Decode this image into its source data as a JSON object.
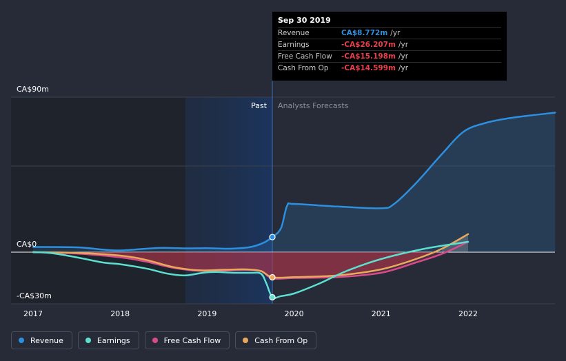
{
  "chart_data": {
    "type": "line",
    "x_unit": "year",
    "xlim": [
      2017,
      2023.0
    ],
    "ylim": [
      -30,
      90
    ],
    "y_tick_labels": [
      {
        "value": 90,
        "label": "CA$90m"
      },
      {
        "value": 0,
        "label": "CA$0"
      },
      {
        "value": -30,
        "label": "-CA$30m"
      }
    ],
    "x_ticks": [
      2017,
      2018,
      2019,
      2020,
      2021,
      2022
    ],
    "x_tick_labels": [
      "2017",
      "2018",
      "2019",
      "2020",
      "2021",
      "2022"
    ],
    "divider_x": 2019.75,
    "highlight_start_x": 2018.75,
    "past_label": "Past",
    "forecast_label": "Analysts Forecasts",
    "series": [
      {
        "name": "Revenue",
        "key": "revenue",
        "color": "#2d8fe0",
        "fill": true,
        "points": [
          [
            2017,
            3.0
          ],
          [
            2017.5,
            2.8
          ],
          [
            2017.8,
            1.5
          ],
          [
            2018.0,
            1.0
          ],
          [
            2018.3,
            2.0
          ],
          [
            2018.5,
            2.5
          ],
          [
            2018.75,
            2.2
          ],
          [
            2019.0,
            2.3
          ],
          [
            2019.25,
            2.0
          ],
          [
            2019.5,
            3.0
          ],
          [
            2019.65,
            5.5
          ],
          [
            2019.75,
            8.772
          ],
          [
            2019.85,
            14.0
          ],
          [
            2019.92,
            27.0
          ],
          [
            2020.0,
            28.0
          ],
          [
            2020.5,
            26.5
          ],
          [
            2021.0,
            25.5
          ],
          [
            2021.15,
            28.0
          ],
          [
            2021.4,
            40.0
          ],
          [
            2021.7,
            57.0
          ],
          [
            2021.95,
            70.0
          ],
          [
            2022.2,
            75.0
          ],
          [
            2022.5,
            78.0
          ],
          [
            2023.0,
            81.0
          ]
        ]
      },
      {
        "name": "Earnings",
        "key": "earnings",
        "color": "#5de0d0",
        "points": [
          [
            2017,
            0
          ],
          [
            2017.2,
            -0.5
          ],
          [
            2017.5,
            -3.0
          ],
          [
            2017.8,
            -6.0
          ],
          [
            2018.0,
            -7.0
          ],
          [
            2018.3,
            -9.5
          ],
          [
            2018.55,
            -12.5
          ],
          [
            2018.75,
            -13.5
          ],
          [
            2018.95,
            -12.0
          ],
          [
            2019.1,
            -11.5
          ],
          [
            2019.3,
            -12.0
          ],
          [
            2019.5,
            -12.0
          ],
          [
            2019.62,
            -12.5
          ],
          [
            2019.68,
            -18.0
          ],
          [
            2019.75,
            -26.207
          ],
          [
            2019.85,
            -25.5
          ],
          [
            2020.0,
            -24.0
          ],
          [
            2020.3,
            -18.0
          ],
          [
            2020.6,
            -11.0
          ],
          [
            2021.0,
            -4.0
          ],
          [
            2021.5,
            2.0
          ],
          [
            2022.0,
            6.0
          ]
        ]
      },
      {
        "name": "Free Cash Flow",
        "key": "free_cash_flow",
        "color": "#d84b8a",
        "points": [
          [
            2017,
            0
          ],
          [
            2017.5,
            -0.8
          ],
          [
            2018.0,
            -3.0
          ],
          [
            2018.3,
            -5.5
          ],
          [
            2018.6,
            -9.0
          ],
          [
            2018.9,
            -10.8
          ],
          [
            2019.2,
            -10.7
          ],
          [
            2019.45,
            -10.3
          ],
          [
            2019.62,
            -11.0
          ],
          [
            2019.75,
            -15.198
          ],
          [
            2020.0,
            -15.0
          ],
          [
            2020.5,
            -14.5
          ],
          [
            2021.0,
            -12.0
          ],
          [
            2021.4,
            -6.0
          ],
          [
            2021.7,
            -1.0
          ],
          [
            2022.0,
            6.0
          ]
        ]
      },
      {
        "name": "Cash From Op",
        "key": "cash_from_op",
        "color": "#e8a95c",
        "points": [
          [
            2017,
            0
          ],
          [
            2017.5,
            -0.4
          ],
          [
            2018.0,
            -2.0
          ],
          [
            2018.3,
            -4.5
          ],
          [
            2018.6,
            -8.5
          ],
          [
            2018.9,
            -10.5
          ],
          [
            2019.2,
            -10.2
          ],
          [
            2019.45,
            -10.0
          ],
          [
            2019.62,
            -11.0
          ],
          [
            2019.75,
            -14.599
          ],
          [
            2020.0,
            -14.5
          ],
          [
            2020.5,
            -13.5
          ],
          [
            2021.0,
            -10.0
          ],
          [
            2021.4,
            -4.0
          ],
          [
            2021.7,
            2.0
          ],
          [
            2022.0,
            10.5
          ]
        ]
      }
    ],
    "markers": [
      {
        "series": "revenue",
        "x": 2019.75,
        "y": 8.772
      },
      {
        "series": "earnings",
        "x": 2019.75,
        "y": -26.207
      },
      {
        "series": "cash_from_op",
        "x": 2019.75,
        "y": -14.599
      }
    ]
  },
  "tooltip": {
    "date": "Sep 30 2019",
    "rows": [
      {
        "label": "Revenue",
        "value": "CA$8.772m",
        "unit": "/yr",
        "color": "#2d8fe0"
      },
      {
        "label": "Earnings",
        "value": "-CA$26.207m",
        "unit": "/yr",
        "color": "#e8404a"
      },
      {
        "label": "Free Cash Flow",
        "value": "-CA$15.198m",
        "unit": "/yr",
        "color": "#e8404a"
      },
      {
        "label": "Cash From Op",
        "value": "-CA$14.599m",
        "unit": "/yr",
        "color": "#e8404a"
      }
    ]
  },
  "legend": [
    {
      "label": "Revenue",
      "color": "#2d8fe0"
    },
    {
      "label": "Earnings",
      "color": "#5de0d0"
    },
    {
      "label": "Free Cash Flow",
      "color": "#d84b8a"
    },
    {
      "label": "Cash From Op",
      "color": "#e8a95c"
    }
  ]
}
